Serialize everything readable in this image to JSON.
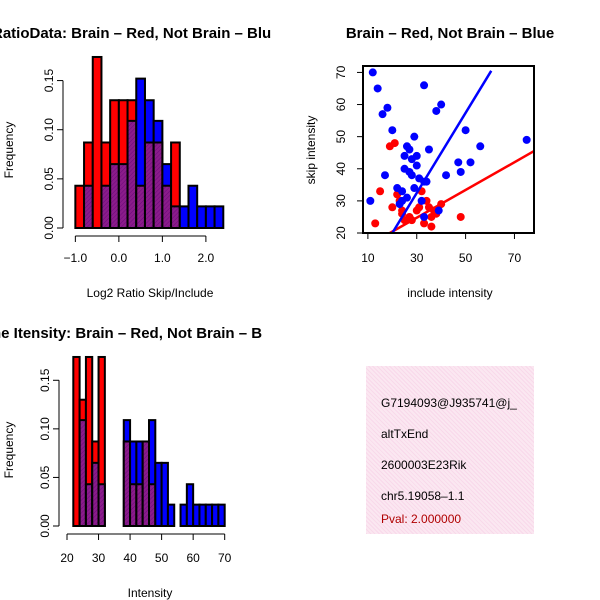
{
  "panels": {
    "ratio": {
      "title": "RatioData: Brain – Red, Not Brain – Blu",
      "xlabel": "Log2 Ratio Skip/Include",
      "ylabel": "Frequency"
    },
    "scatter": {
      "title": "Brain – Red, Not Brain – Blue",
      "xlabel": "include intensity",
      "ylabel": "skip intensity"
    },
    "intensity": {
      "title": "ne Itensity: Brain – Red, Not Brain – B",
      "xlabel": "Intensity",
      "ylabel": "Frequency"
    }
  },
  "info_box": {
    "id": "G7194093@J935741@j_",
    "type": "altTxEnd",
    "gene": "2600003E23Rik",
    "locus": "chr5.19058–1.1",
    "pval": "Pval: 2.000000"
  },
  "colors": {
    "brain": "#ff0000",
    "not_brain": "#0000ff",
    "overlap": "#8b1c8b",
    "pval_text": "#b00000",
    "info_bg": "#f8d9ea"
  },
  "chart_data": [
    {
      "type": "histogram",
      "name": "ratio_hist",
      "title": "RatioData: Brain – Red, Not Brain – Blu",
      "xlabel": "Log2 Ratio Skip/Include",
      "ylabel": "Frequency",
      "xlim": [
        -1.1,
        2.6
      ],
      "ylim": [
        0,
        0.175
      ],
      "xticks": [
        -1.0,
        0.0,
        1.0,
        2.0
      ],
      "xtick_labels": [
        "−1.0",
        "0.0",
        "1.0",
        "2.0"
      ],
      "yticks": [
        0.0,
        0.05,
        0.1,
        0.15
      ],
      "ytick_labels": [
        "0.00",
        "0.05",
        "0.10",
        "0.15"
      ],
      "bin_edges": [
        -1.0,
        -0.8,
        -0.6,
        -0.4,
        -0.2,
        0.0,
        0.2,
        0.4,
        0.6,
        0.8,
        1.0,
        1.2,
        1.4,
        1.6,
        1.8,
        2.0,
        2.2,
        2.4
      ],
      "series": [
        {
          "name": "Brain",
          "color": "#ff0000",
          "values": [
            0.043,
            0.087,
            0.174,
            0.087,
            0.13,
            0.13,
            0.13,
            0.043,
            0.087,
            0.087,
            0.043,
            0.087,
            0.0,
            0.0,
            0.0,
            0.0,
            0.0
          ]
        },
        {
          "name": "Not Brain",
          "color": "#0000ff",
          "values": [
            0.0,
            0.043,
            0.0,
            0.043,
            0.065,
            0.065,
            0.109,
            0.152,
            0.13,
            0.109,
            0.065,
            0.022,
            0.022,
            0.043,
            0.022,
            0.022,
            0.022
          ]
        }
      ]
    },
    {
      "type": "scatter",
      "name": "intensity_scatter",
      "title": "Brain – Red, Not Brain – Blue",
      "xlabel": "include intensity",
      "ylabel": "skip intensity",
      "xlim": [
        8,
        78
      ],
      "ylim": [
        20,
        72
      ],
      "xticks": [
        10,
        30,
        50,
        70
      ],
      "xtick_labels": [
        "10",
        "30",
        "50",
        "70"
      ],
      "yticks": [
        20,
        30,
        40,
        50,
        60,
        70
      ],
      "ytick_labels": [
        "20",
        "30",
        "40",
        "50",
        "60",
        "70"
      ],
      "series": [
        {
          "name": "Brain",
          "color": "#ff0000",
          "points": [
            [
              15,
              33
            ],
            [
              13,
              23
            ],
            [
              22,
              32
            ],
            [
              23,
              30
            ],
            [
              24,
              26
            ],
            [
              25,
              24
            ],
            [
              27,
              25
            ],
            [
              28,
              24
            ],
            [
              30,
              27
            ],
            [
              31,
              28
            ],
            [
              33,
              23
            ],
            [
              34,
              30
            ],
            [
              35,
              28
            ],
            [
              36,
              25
            ],
            [
              36,
              22
            ],
            [
              37,
              27
            ],
            [
              38,
              26
            ],
            [
              40,
              29
            ],
            [
              48,
              25
            ],
            [
              20,
              28
            ],
            [
              19,
              47
            ],
            [
              21,
              48
            ],
            [
              24,
              27
            ],
            [
              32,
              33
            ]
          ],
          "fit": [
            [
              19,
              20
            ],
            [
              78,
              45.5
            ]
          ]
        },
        {
          "name": "Not Brain",
          "color": "#0000ff",
          "points": [
            [
              11,
              30
            ],
            [
              12,
              70
            ],
            [
              14,
              65
            ],
            [
              16,
              57
            ],
            [
              18,
              59
            ],
            [
              17,
              38
            ],
            [
              20,
              52
            ],
            [
              22,
              34
            ],
            [
              23,
              29
            ],
            [
              24,
              33
            ],
            [
              25,
              44
            ],
            [
              25,
              40
            ],
            [
              26,
              47
            ],
            [
              27,
              39
            ],
            [
              27,
              46
            ],
            [
              28,
              43
            ],
            [
              28,
              38
            ],
            [
              29,
              50
            ],
            [
              30,
              44
            ],
            [
              30,
              41
            ],
            [
              31,
              37
            ],
            [
              32,
              30
            ],
            [
              33,
              36
            ],
            [
              34,
              36
            ],
            [
              35,
              46
            ],
            [
              33,
              66
            ],
            [
              38,
              58
            ],
            [
              40,
              60
            ],
            [
              42,
              38
            ],
            [
              47,
              42
            ],
            [
              48,
              39
            ],
            [
              50,
              52
            ],
            [
              52,
              42
            ],
            [
              56,
              47
            ],
            [
              75,
              49
            ],
            [
              39,
              27
            ],
            [
              33,
              25
            ],
            [
              29,
              34
            ],
            [
              26,
              31
            ],
            [
              24,
              30
            ]
          ],
          "fit": [
            [
              20,
              20
            ],
            [
              60.5,
              70.5
            ]
          ]
        }
      ]
    },
    {
      "type": "histogram",
      "name": "intensity_hist",
      "title": "ne Itensity: Brain – Red, Not Brain – B",
      "xlabel": "Intensity",
      "ylabel": "Frequency",
      "xlim": [
        20,
        72
      ],
      "ylim": [
        0,
        0.175
      ],
      "xticks": [
        20,
        30,
        40,
        50,
        60,
        70
      ],
      "xtick_labels": [
        "20",
        "30",
        "40",
        "50",
        "60",
        "70"
      ],
      "yticks": [
        0.0,
        0.05,
        0.1,
        0.15
      ],
      "ytick_labels": [
        "0.00",
        "0.05",
        "0.10",
        "0.15"
      ],
      "bin_edges": [
        22,
        24,
        26,
        28,
        30,
        32,
        34,
        36,
        38,
        40,
        42,
        44,
        46,
        48,
        50,
        52,
        54,
        56,
        58,
        60,
        62,
        64,
        66,
        68,
        70
      ],
      "series": [
        {
          "name": "Brain",
          "color": "#ff0000",
          "values": [
            0.174,
            0.13,
            0.174,
            0.087,
            0.174,
            0.0,
            0.0,
            0.0,
            0.087,
            0.043,
            0.043,
            0.087,
            0.043,
            0.0,
            0.0,
            0.0,
            0.0,
            0.0,
            0.0,
            0.0,
            0.0,
            0.0,
            0.0,
            0.0
          ]
        },
        {
          "name": "Not Brain",
          "color": "#0000ff",
          "values": [
            0.0,
            0.109,
            0.043,
            0.065,
            0.043,
            0.0,
            0.0,
            0.0,
            0.109,
            0.087,
            0.087,
            0.087,
            0.109,
            0.065,
            0.065,
            0.022,
            0.0,
            0.022,
            0.043,
            0.022,
            0.022,
            0.022,
            0.022,
            0.022
          ]
        }
      ]
    }
  ]
}
